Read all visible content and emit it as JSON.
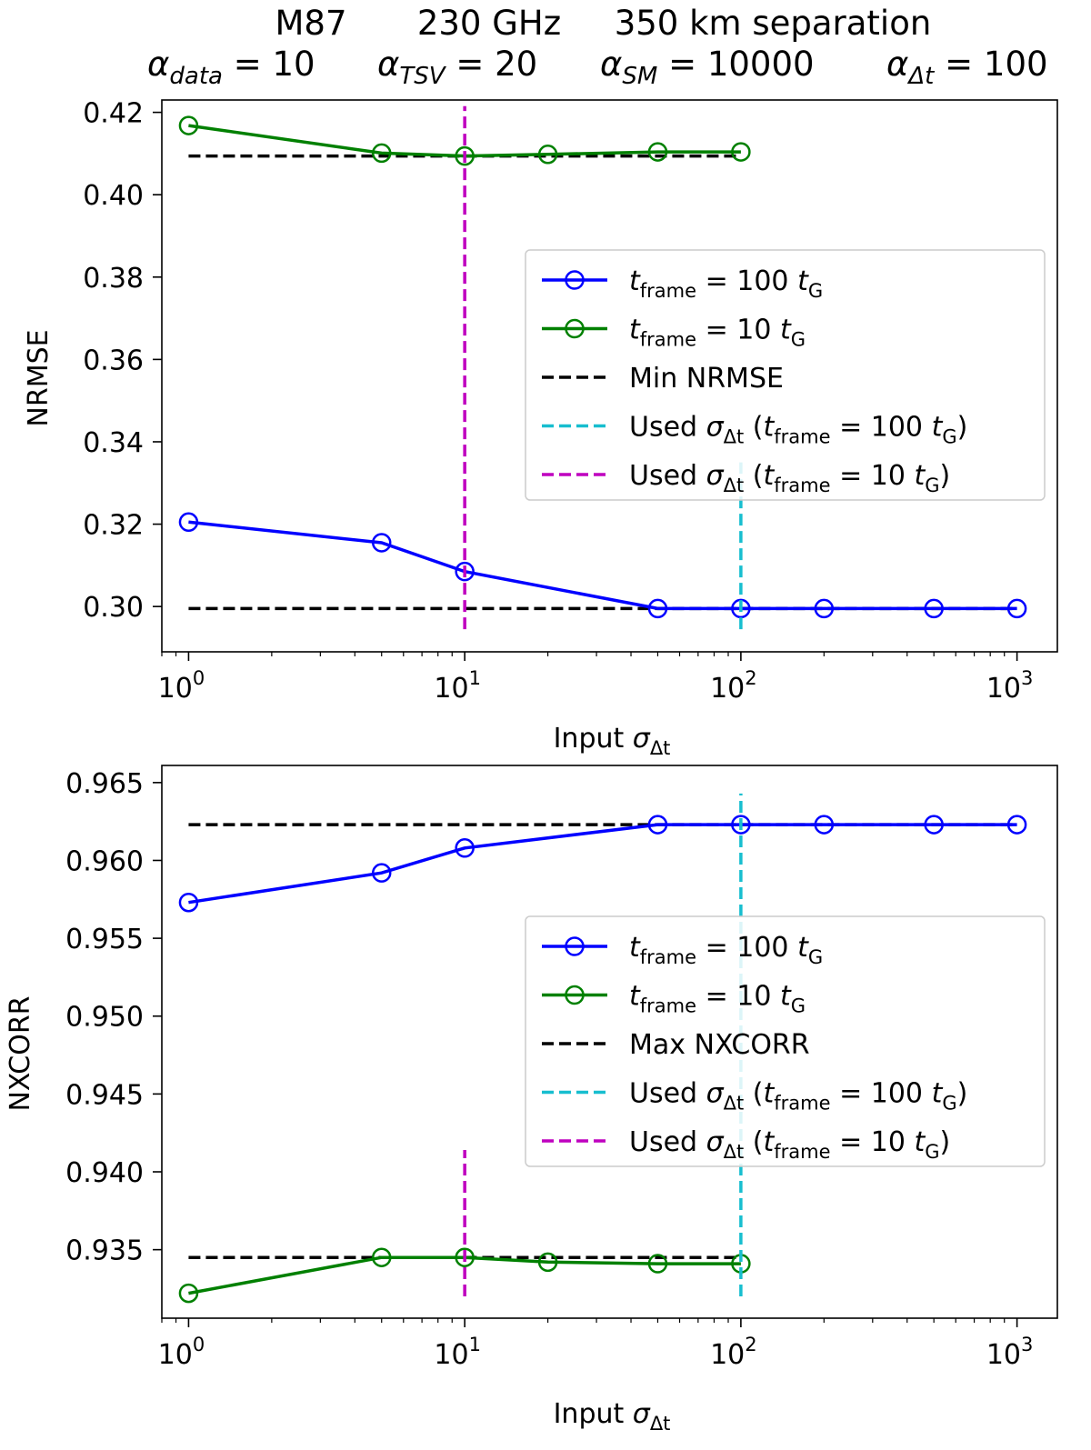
{
  "header": {
    "title_line1": {
      "object": "M87",
      "frequency": "230 GHz",
      "separation": "350 km separation"
    },
    "title_line2": [
      {
        "symbol": "α",
        "sub": "data",
        "value": " = 10"
      },
      {
        "symbol": "α",
        "sub": "TSV",
        "value": " = 20"
      },
      {
        "symbol": "α",
        "sub": "SM",
        "value": " = 10000"
      },
      {
        "symbol": "α",
        "sub": "Δt",
        "value": " = 100"
      }
    ]
  },
  "colors": {
    "blue": "#0000ff",
    "green": "#008000",
    "black": "#000000",
    "cyan": "#17becf",
    "magenta": "#bf00bf"
  },
  "chart_data": [
    {
      "type": "line",
      "xscale": "log",
      "xlim": [
        0.8,
        1400
      ],
      "ylim": [
        0.289,
        0.423
      ],
      "xlabel": {
        "text": "Input ",
        "symbol": "σ",
        "sub": "Δt"
      },
      "ylabel": "NRMSE",
      "xticks": [
        {
          "base": "10",
          "exp": "0",
          "value": 1
        },
        {
          "base": "10",
          "exp": "1",
          "value": 10
        },
        {
          "base": "10",
          "exp": "2",
          "value": 100
        },
        {
          "base": "10",
          "exp": "3",
          "value": 1000
        }
      ],
      "yticks": [
        "0.30",
        "0.32",
        "0.34",
        "0.36",
        "0.38",
        "0.40",
        "0.42"
      ],
      "ytick_values": [
        0.3,
        0.32,
        0.34,
        0.36,
        0.38,
        0.4,
        0.42
      ],
      "series": [
        {
          "name": "t_frame = 100 t_G",
          "color": "#0000ff",
          "x": [
            1,
            5,
            10,
            50,
            100,
            200,
            500,
            1000
          ],
          "y": [
            0.3205,
            0.3155,
            0.3085,
            0.2995,
            0.2995,
            0.2995,
            0.2995,
            0.2995
          ]
        },
        {
          "name": "t_frame = 10 t_G",
          "color": "#008000",
          "x": [
            1,
            5,
            10,
            20,
            50,
            100
          ],
          "y": [
            0.4168,
            0.4101,
            0.4094,
            0.4098,
            0.4104,
            0.4104
          ]
        }
      ],
      "hlines": [
        {
          "name": "Min NRMSE",
          "y": 0.2995,
          "xrange": [
            1,
            1000
          ],
          "color": "#000000"
        },
        {
          "name": "Min NRMSE",
          "y": 0.4094,
          "xrange": [
            1,
            100
          ],
          "color": "#000000"
        }
      ],
      "vlines": [
        {
          "name": "Used σΔt (t_frame = 100 t_G)",
          "x": 100,
          "yrange": [
            0.2945,
            0.335
          ],
          "color": "#17becf"
        },
        {
          "name": "Used σΔt (t_frame = 10 t_G)",
          "x": 10,
          "yrange": [
            0.2945,
            0.4215
          ],
          "color": "#bf00bf"
        }
      ],
      "legend": {
        "position": "center-right",
        "entries": [
          {
            "kind": "marker-line",
            "color": "#0000ff",
            "parts": [
              {
                "t": "t",
                "i": true
              },
              {
                "t": "frame",
                "sub": true
              },
              {
                "t": " = 100 "
              },
              {
                "t": "t",
                "i": true
              },
              {
                "t": "G",
                "sub": true
              }
            ]
          },
          {
            "kind": "marker-line",
            "color": "#008000",
            "parts": [
              {
                "t": "t",
                "i": true
              },
              {
                "t": "frame",
                "sub": true
              },
              {
                "t": " = 10 "
              },
              {
                "t": "t",
                "i": true
              },
              {
                "t": "G",
                "sub": true
              }
            ]
          },
          {
            "kind": "dash",
            "color": "#000000",
            "parts": [
              {
                "t": "Min NRMSE"
              }
            ]
          },
          {
            "kind": "dash",
            "color": "#17becf",
            "parts": [
              {
                "t": "Used "
              },
              {
                "t": "σ",
                "i": true
              },
              {
                "t": "Δt",
                "sub": true
              },
              {
                "t": " ("
              },
              {
                "t": "t",
                "i": true
              },
              {
                "t": "frame",
                "sub": true
              },
              {
                "t": " = 100 "
              },
              {
                "t": "t",
                "i": true
              },
              {
                "t": "G",
                "sub": true
              },
              {
                "t": ")"
              }
            ]
          },
          {
            "kind": "dash",
            "color": "#bf00bf",
            "parts": [
              {
                "t": "Used "
              },
              {
                "t": "σ",
                "i": true
              },
              {
                "t": "Δt",
                "sub": true
              },
              {
                "t": " ("
              },
              {
                "t": "t",
                "i": true
              },
              {
                "t": "frame",
                "sub": true
              },
              {
                "t": " = 10 "
              },
              {
                "t": "t",
                "i": true
              },
              {
                "t": "G",
                "sub": true
              },
              {
                "t": ")"
              }
            ]
          }
        ]
      }
    },
    {
      "type": "line",
      "xscale": "log",
      "xlim": [
        0.8,
        1400
      ],
      "ylim": [
        0.9306,
        0.9661
      ],
      "xlabel": {
        "text": "Input ",
        "symbol": "σ",
        "sub": "Δt"
      },
      "ylabel": "NXCORR",
      "xticks": [
        {
          "base": "10",
          "exp": "0",
          "value": 1
        },
        {
          "base": "10",
          "exp": "1",
          "value": 10
        },
        {
          "base": "10",
          "exp": "2",
          "value": 100
        },
        {
          "base": "10",
          "exp": "3",
          "value": 1000
        }
      ],
      "yticks": [
        "0.935",
        "0.940",
        "0.945",
        "0.950",
        "0.955",
        "0.960",
        "0.965"
      ],
      "ytick_values": [
        0.935,
        0.94,
        0.945,
        0.95,
        0.955,
        0.96,
        0.965
      ],
      "series": [
        {
          "name": "t_frame = 100 t_G",
          "color": "#0000ff",
          "x": [
            1,
            5,
            10,
            50,
            100,
            200,
            500,
            1000
          ],
          "y": [
            0.9573,
            0.9592,
            0.9608,
            0.9623,
            0.9623,
            0.9623,
            0.9623,
            0.9623
          ]
        },
        {
          "name": "t_frame = 10 t_G",
          "color": "#008000",
          "x": [
            1,
            5,
            10,
            20,
            50,
            100
          ],
          "y": [
            0.9322,
            0.9345,
            0.9345,
            0.9342,
            0.9341,
            0.9341
          ]
        }
      ],
      "hlines": [
        {
          "name": "Max NXCORR",
          "y": 0.9623,
          "xrange": [
            1,
            1000
          ],
          "color": "#000000"
        },
        {
          "name": "Max NXCORR",
          "y": 0.9345,
          "xrange": [
            1,
            100
          ],
          "color": "#000000"
        }
      ],
      "vlines": [
        {
          "name": "Used σΔt (t_frame = 100 t_G)",
          "x": 100,
          "yrange": [
            0.932,
            0.9643
          ],
          "color": "#17becf"
        },
        {
          "name": "Used σΔt (t_frame = 10 t_G)",
          "x": 10,
          "yrange": [
            0.932,
            0.9414
          ],
          "color": "#bf00bf"
        }
      ],
      "legend": {
        "position": "center-right",
        "entries": [
          {
            "kind": "marker-line",
            "color": "#0000ff",
            "parts": [
              {
                "t": "t",
                "i": true
              },
              {
                "t": "frame",
                "sub": true
              },
              {
                "t": " = 100 "
              },
              {
                "t": "t",
                "i": true
              },
              {
                "t": "G",
                "sub": true
              }
            ]
          },
          {
            "kind": "marker-line",
            "color": "#008000",
            "parts": [
              {
                "t": "t",
                "i": true
              },
              {
                "t": "frame",
                "sub": true
              },
              {
                "t": " = 10 "
              },
              {
                "t": "t",
                "i": true
              },
              {
                "t": "G",
                "sub": true
              }
            ]
          },
          {
            "kind": "dash",
            "color": "#000000",
            "parts": [
              {
                "t": "Max NXCORR"
              }
            ]
          },
          {
            "kind": "dash",
            "color": "#17becf",
            "parts": [
              {
                "t": "Used "
              },
              {
                "t": "σ",
                "i": true
              },
              {
                "t": "Δt",
                "sub": true
              },
              {
                "t": " ("
              },
              {
                "t": "t",
                "i": true
              },
              {
                "t": "frame",
                "sub": true
              },
              {
                "t": " = 100 "
              },
              {
                "t": "t",
                "i": true
              },
              {
                "t": "G",
                "sub": true
              },
              {
                "t": ")"
              }
            ]
          },
          {
            "kind": "dash",
            "color": "#bf00bf",
            "parts": [
              {
                "t": "Used "
              },
              {
                "t": "σ",
                "i": true
              },
              {
                "t": "Δt",
                "sub": true
              },
              {
                "t": " ("
              },
              {
                "t": "t",
                "i": true
              },
              {
                "t": "frame",
                "sub": true
              },
              {
                "t": " = 10 "
              },
              {
                "t": "t",
                "i": true
              },
              {
                "t": "G",
                "sub": true
              },
              {
                "t": ")"
              }
            ]
          }
        ]
      }
    }
  ]
}
